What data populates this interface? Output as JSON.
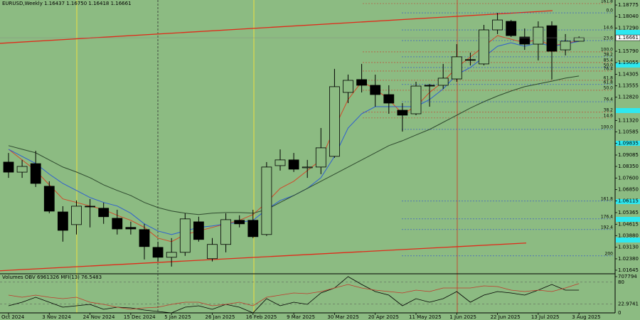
{
  "chart_data": {
    "type": "candlestick",
    "title": "EURUSD,Weekly  1.16437 1.16750 1.16418 1.16661",
    "background": "#8cbb82",
    "categories": [
      "Oct 2024",
      null,
      null,
      "3 Nov 2024",
      null,
      null,
      "24 Nov 2024",
      null,
      null,
      "15 Dec 2024",
      null,
      null,
      "5 Jan 2025",
      null,
      null,
      "26 Jan 2025",
      null,
      null,
      "16 Feb 2025",
      null,
      null,
      "9 Mar 2025",
      null,
      null,
      "30 Mar 2025",
      null,
      null,
      "20 Apr 2025",
      null,
      null,
      "11 May 2025",
      null,
      null,
      "1 Jun 2025",
      null,
      null,
      "22 Jun 2025",
      null,
      null,
      "13 Jul 2025",
      null,
      null,
      "3 Aug 2025"
    ],
    "open": [
      1.0863,
      1.0798,
      1.0853,
      1.0707,
      1.0541,
      1.0459,
      1.0578,
      1.0565,
      1.05,
      1.0441,
      1.0427,
      1.0312,
      1.0248,
      1.028,
      1.0477,
      1.0239,
      1.0331,
      1.0487,
      1.0487,
      1.0395,
      1.084,
      1.0877,
      1.0826,
      1.0831,
      1.09,
      1.1313,
      1.1396,
      1.1359,
      1.1299,
      1.1198,
      1.1175,
      1.1359,
      1.1359,
      1.14,
      1.1525,
      1.1497,
      1.1717,
      1.1772,
      1.1671,
      1.1625,
      1.1744,
      1.1588,
      1.16437
    ],
    "high": [
      1.0922,
      1.0877,
      1.0936,
      1.0739,
      1.0578,
      1.0615,
      1.0624,
      1.0601,
      1.0555,
      1.0478,
      1.0464,
      1.0349,
      1.0372,
      1.0532,
      1.051,
      1.0372,
      1.0532,
      1.0519,
      1.0555,
      1.0863,
      1.0945,
      1.0922,
      1.0877,
      1.1083,
      1.1465,
      1.1428,
      1.1497,
      1.1428,
      1.1359,
      1.1244,
      1.1382,
      1.1368,
      1.1497,
      1.1625,
      1.157,
      1.1749,
      1.1827,
      1.1781,
      1.1726,
      1.1772,
      1.1772,
      1.169,
      1.1675
    ],
    "low": [
      1.0761,
      1.0761,
      1.0702,
      1.0532,
      1.0349,
      1.0395,
      1.0441,
      1.0464,
      1.0395,
      1.0395,
      1.0234,
      1.0221,
      1.0188,
      1.0257,
      1.0349,
      1.0221,
      1.028,
      1.0441,
      1.0372,
      1.0386,
      1.0808,
      1.0799,
      1.0761,
      1.0785,
      1.0891,
      1.1244,
      1.1313,
      1.1221,
      1.1175,
      1.106,
      1.1166,
      1.1221,
      1.1336,
      1.1382,
      1.1487,
      1.1488,
      1.169,
      1.1671,
      1.1588,
      1.152,
      1.1396,
      1.1552,
      1.16418
    ],
    "close": [
      1.0798,
      1.0835,
      1.0725,
      1.0546,
      1.0422,
      1.0578,
      1.0574,
      1.051,
      1.0431,
      1.0431,
      1.0317,
      1.0248,
      1.028,
      1.0496,
      1.0363,
      1.0331,
      1.0491,
      1.0464,
      1.0381,
      1.0831,
      1.0877,
      1.0817,
      1.0831,
      1.0955,
      1.135,
      1.1391,
      1.1359,
      1.1299,
      1.1244,
      1.1166,
      1.1354,
      1.1354,
      1.1405,
      1.1543,
      1.1523,
      1.1717,
      1.1781,
      1.168,
      1.1625,
      1.1735,
      1.1579,
      1.1644,
      1.16661
    ],
    "up_color": "#8cbb82",
    "down_color": "#000000",
    "series": [
      {
        "color": "#d04a2a",
        "values": [
          1.0946,
          1.0877,
          1.0808,
          1.0716,
          1.0625,
          1.0602,
          1.0579,
          1.0556,
          1.0519,
          1.0487,
          1.0441,
          1.0372,
          1.0349,
          1.0395,
          1.0418,
          1.0441,
          1.0464,
          1.0487,
          1.0524,
          1.0602,
          1.0693,
          1.0739,
          1.0808,
          1.0877,
          1.1083,
          1.1267,
          1.1382,
          1.1336,
          1.1267,
          1.1175,
          1.1221,
          1.1313,
          1.1382,
          1.1474,
          1.1542,
          1.1611,
          1.168,
          1.1657,
          1.1634,
          1.1657,
          1.1611,
          1.1634,
          1.1643
        ]
      },
      {
        "color": "#2f5fd0",
        "values": [
          1.0946,
          1.09,
          1.0854,
          1.0785,
          1.0725,
          1.068,
          1.0634,
          1.0602,
          1.0579,
          1.0533,
          1.0464,
          1.0418,
          1.0395,
          1.0418,
          1.0441,
          1.045,
          1.0464,
          1.0473,
          1.0487,
          1.0556,
          1.0615,
          1.0647,
          1.0693,
          1.0762,
          1.09,
          1.1083,
          1.1175,
          1.1221,
          1.1221,
          1.1221,
          1.1221,
          1.1267,
          1.1336,
          1.1428,
          1.1474,
          1.1542,
          1.1611,
          1.1634,
          1.1611,
          1.1634,
          1.1611,
          1.1625,
          1.1643
        ]
      },
      {
        "color": "#2f4a2f",
        "values": [
          1.0969,
          1.0946,
          1.0923,
          1.0877,
          1.0831,
          1.0799,
          1.0762,
          1.0716,
          1.068,
          1.0647,
          1.0602,
          1.0569,
          1.0547,
          1.0533,
          1.0524,
          1.0533,
          1.0537,
          1.0537,
          1.0533,
          1.0556,
          1.0602,
          1.0647,
          1.0693,
          1.0739,
          1.0785,
          1.0831,
          1.0877,
          1.0923,
          1.0969,
          1.1001,
          1.1038,
          1.1074,
          1.112,
          1.1166,
          1.1212,
          1.1253,
          1.129,
          1.1322,
          1.135,
          1.1368,
          1.1386,
          1.1405,
          1.1419
        ]
      }
    ],
    "channel": [
      {
        "color": "#e02a1a",
        "start": 1.163,
        "end": 1.1841
      },
      {
        "color": "#e02a1a",
        "start": 1.0161,
        "end": 1.034
      }
    ],
    "fib_levels": [
      {
        "label": "161.8",
        "value": 1.1887,
        "color": "#c83a2a"
      },
      {
        "label": "0.0",
        "value": 1.1827,
        "color": "#2f4fd0"
      },
      {
        "label": "14.6",
        "value": 1.1717,
        "color": "#2f4fd0"
      },
      {
        "label": "23.6",
        "value": 1.1648,
        "color": "#2f4fd0"
      },
      {
        "label": "100.0",
        "value": 1.1575,
        "color": "#c83a2a"
      },
      {
        "label": "38.2",
        "value": 1.1543,
        "color": "#2f4fd0"
      },
      {
        "label": "85.4",
        "value": 1.1506,
        "color": "#c83a2a"
      },
      {
        "label": "50.0",
        "value": 1.1474,
        "color": "#2f4fd0"
      },
      {
        "label": "76.4",
        "value": 1.1451,
        "color": "#c83a2a"
      },
      {
        "label": "61.8",
        "value": 1.1391,
        "color": "#c83a2a"
      },
      {
        "label": "61.8",
        "value": 1.1364,
        "color": "#2f4fd0"
      },
      {
        "label": "50.0",
        "value": 1.1327,
        "color": "#c83a2a"
      },
      {
        "label": "76.4",
        "value": 1.1253,
        "color": "#2f4fd0"
      },
      {
        "label": "38.2",
        "value": 1.1185,
        "color": "#c83a2a"
      },
      {
        "label": "14.6",
        "value": 1.1148,
        "color": "#c83a2a"
      },
      {
        "label": "100.0",
        "value": 1.1074,
        "color": "#2f4fd0"
      },
      {
        "label": "161.8",
        "value": 1.0611,
        "color": "#2f4fd0"
      },
      {
        "label": "176.4",
        "value": 1.0496,
        "color": "#2f4fd0"
      },
      {
        "label": "192.4",
        "value": 1.0427,
        "color": "#2f4fd0"
      },
      {
        "label": "200",
        "value": 1.0257,
        "color": "#2f4fd0"
      }
    ],
    "ylim": [
      1.0146,
      1.191
    ],
    "yticks": [
      1.18775,
      {
        "value": 1.1804,
        "label": "1.18040"
      },
      {
        "value": 1.1729,
        "label": "1.17290"
      },
      {
        "value": 1.1579,
        "label": "1.15790"
      },
      1.15055,
      1.14305,
      1.13555,
      {
        "value": 1.1282,
        "label": "1.12820"
      },
      {
        "value": 1.1132,
        "label": "1.11320"
      },
      1.10585,
      1.09835,
      1.09085,
      {
        "value": 1.0835,
        "label": "1.08350"
      },
      {
        "value": 1.076,
        "label": "1.07600"
      },
      {
        "value": 1.0685,
        "label": "1.06850"
      },
      1.06115,
      1.05365,
      1.04615,
      {
        "value": 1.0388,
        "label": "1.03880"
      },
      {
        "value": 1.0313,
        "label": "1.03130"
      },
      {
        "value": 1.0238,
        "label": "1.02380"
      },
      1.01645
    ],
    "grid": false,
    "indicator": {
      "title": "Volumes OBV 6961326 MFI(13) 76.5483",
      "ylim": [
        0,
        100
      ],
      "yticks": [
        80,
        22.9741,
        0
      ],
      "y2lim": [
        0,
        707794
      ],
      "y2ticks": [
        707794
      ],
      "series": [
        {
          "color": "#000000",
          "axis": "y2",
          "values": [
            131073,
            196610,
            288361,
            196610,
            104858,
            131073,
            157288,
            65537,
            104858,
            91751,
            52429,
            26215,
            0,
            104858,
            131073,
            65537,
            157288,
            104858,
            0,
            262146,
            131073,
            196610,
            157288,
            367004,
            458756,
            668472,
            524292,
            393219,
            327683,
            131073,
            262146,
            196610,
            262146,
            393219,
            196610,
            327683,
            393219,
            367004,
            327683,
            419434,
            524292,
            419434,
            419434
          ]
        },
        {
          "color": "#c0392b",
          "values": [
            46.3,
            40.7,
            46.3,
            40.7,
            37.0,
            40.7,
            27.8,
            22.2,
            14.8,
            9.3,
            13.0,
            14.8,
            22.2,
            27.8,
            27.8,
            18.5,
            22.2,
            27.8,
            18.5,
            40.7,
            46.3,
            51.9,
            50.0,
            55.6,
            64.8,
            74.1,
            64.8,
            59.3,
            55.6,
            51.9,
            59.3,
            55.6,
            64.8,
            64.8,
            64.8,
            70.4,
            68.5,
            59.3,
            55.6,
            59.3,
            55.6,
            64.8,
            76.5
          ]
        }
      ]
    }
  }
}
